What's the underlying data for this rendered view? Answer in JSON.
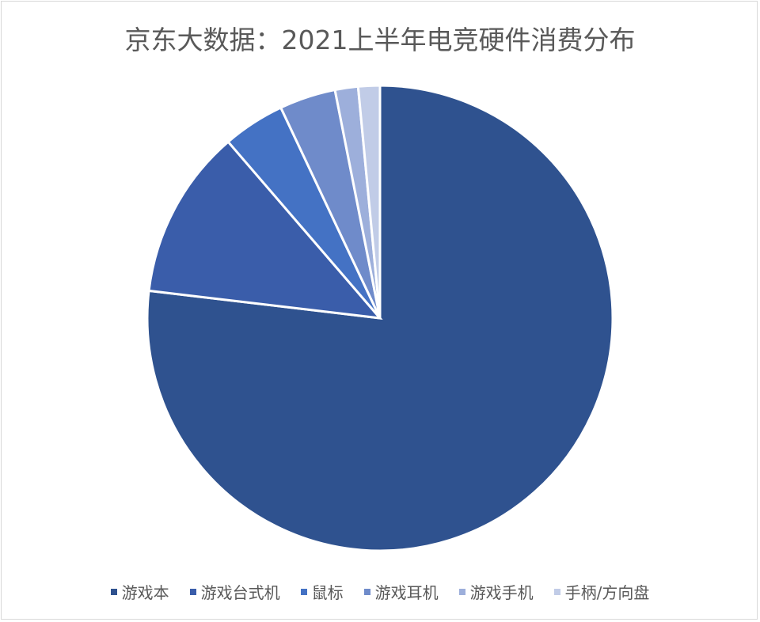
{
  "chart_data": {
    "type": "pie",
    "title": "京东大数据：2021上半年电竞硬件消费分布",
    "categories": [
      "游戏本",
      "游戏台式机",
      "鼠标",
      "游戏耳机",
      "游戏手机",
      "手柄/方向盘"
    ],
    "values": [
      76.8,
      11.8,
      4.3,
      3.9,
      1.6,
      1.5
    ],
    "colors": [
      "#2F528F",
      "#3A5DAA",
      "#4472C4",
      "#6F8BCA",
      "#9DAFDB",
      "#C1CCE7"
    ],
    "start_angle": "12 o'clock",
    "direction": "clockwise",
    "legend": "bottom"
  }
}
